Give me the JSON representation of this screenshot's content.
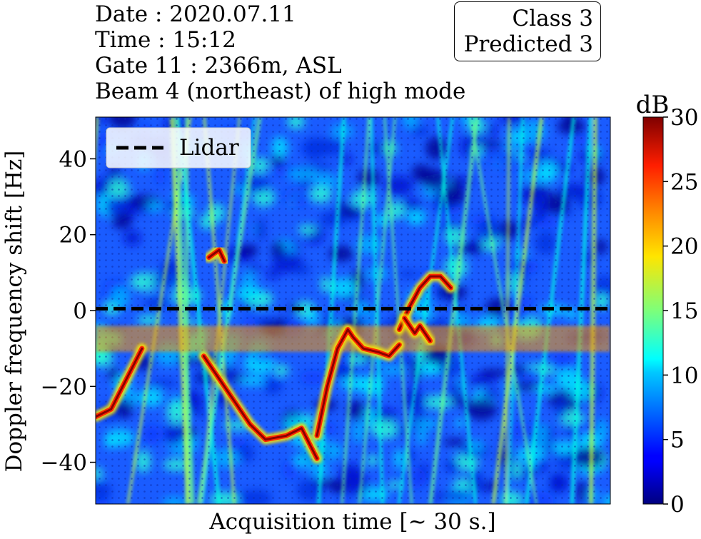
{
  "info": {
    "date": "Date : 2020.07.11",
    "time": "Time : 15:12",
    "gate": "Gate 11 : 2366m, ASL",
    "beam": "Beam 4 (northeast) of high mode"
  },
  "class_box": {
    "class_label": "Class 3",
    "predicted_label": "Predicted 3"
  },
  "chart_data": {
    "type": "heatmap",
    "title": "",
    "xlabel": "Acquisition time [~ 30 s.]",
    "ylabel": "Doppler frequency shift [Hz]",
    "ylim": [
      -51,
      51
    ],
    "y_ticks": [
      -40,
      -20,
      0,
      20,
      40
    ],
    "y_tick_labels": [
      "−40",
      "−20",
      "0",
      "20",
      "40"
    ],
    "x_ticks": [],
    "colormap": "jet",
    "colorbar": {
      "label": "dB",
      "range": [
        0,
        30
      ],
      "ticks": [
        0,
        5,
        10,
        15,
        20,
        25,
        30
      ],
      "tick_labels": [
        "0",
        "5",
        "10",
        "15",
        "20",
        "25",
        "30"
      ]
    },
    "legend": {
      "position": "top-left",
      "entries": [
        {
          "name": "Lidar",
          "style": "dashed",
          "color": "#000000"
        }
      ]
    },
    "series": [
      {
        "name": "Lidar",
        "type": "line",
        "x": [
          0,
          1
        ],
        "y": [
          0.5,
          0.5
        ]
      }
    ],
    "signal_traces": [
      {
        "x": [
          0.0,
          0.03,
          0.06,
          0.09
        ],
        "y": [
          -28,
          -26,
          -18,
          -10
        ]
      },
      {
        "x": [
          0.21,
          0.24,
          0.27,
          0.3,
          0.33,
          0.37,
          0.4,
          0.43
        ],
        "y": [
          -12,
          -18,
          -24,
          -30,
          -34,
          -33,
          -31,
          -39
        ]
      },
      {
        "x": [
          0.43,
          0.45,
          0.47,
          0.49,
          0.5,
          0.52,
          0.55,
          0.57,
          0.59
        ],
        "y": [
          -33,
          -20,
          -10,
          -5,
          -7,
          -10,
          -11,
          -12,
          -9
        ]
      },
      {
        "x": [
          0.59,
          0.61,
          0.63,
          0.65,
          0.67,
          0.69
        ],
        "y": [
          -5,
          1,
          6,
          9,
          9,
          6
        ]
      },
      {
        "x": [
          0.22,
          0.24,
          0.25
        ],
        "y": [
          14,
          16,
          13
        ]
      },
      {
        "x": [
          0.6,
          0.62,
          0.63,
          0.65
        ],
        "y": [
          -2,
          -6,
          -4,
          -8
        ]
      }
    ],
    "grid": false
  }
}
